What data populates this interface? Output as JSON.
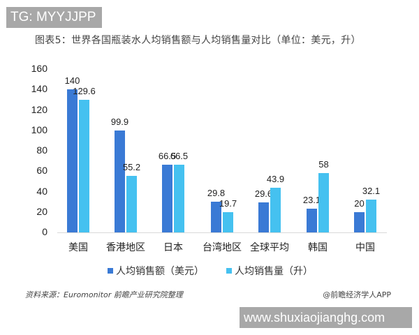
{
  "watermark_tag": "TG: MYYJJPP",
  "watermark_url": "www.shuxiaojianghg.com",
  "source": "资料来源：Euromonitor 前瞻产业研究院整理",
  "credit": "@前瞻经济学人APP",
  "colors": {
    "series1": "#3a7ad5",
    "series2": "#45c1f0"
  },
  "chart_data": {
    "type": "bar",
    "title": "图表5：世界各国瓶装水人均销售额与人均销售量对比（单位：美元，升）",
    "categories": [
      "美国",
      "香港地区",
      "日本",
      "台湾地区",
      "全球平均",
      "韩国",
      "中国"
    ],
    "series": [
      {
        "name": "人均销售额（美元）",
        "values": [
          140,
          99.9,
          66.5,
          29.8,
          29.6,
          23.1,
          20
        ]
      },
      {
        "name": "人均销售量（升）",
        "values": [
          129.6,
          55.2,
          66.5,
          19.7,
          43.9,
          58,
          32.1
        ]
      }
    ],
    "value_labels": {
      "s1": [
        "140",
        "99.9",
        "66.5",
        "29.8",
        "29.6",
        "23.1",
        "20"
      ],
      "s2": [
        "129.6",
        "55.2",
        "66.5",
        "19.7",
        "43.9",
        "58",
        "32.1"
      ]
    },
    "yticks": [
      "0",
      "20",
      "40",
      "60",
      "80",
      "100",
      "120",
      "140",
      "160"
    ],
    "ylim": [
      0,
      160
    ],
    "xlabel": "",
    "ylabel": "",
    "grid": false,
    "legend_position": "bottom"
  }
}
